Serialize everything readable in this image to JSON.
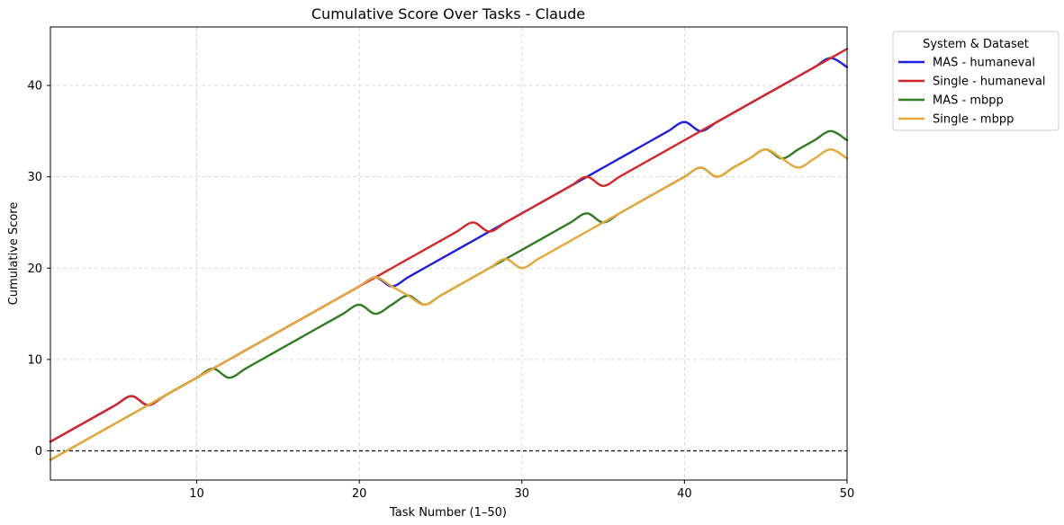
{
  "chart_data": {
    "type": "line",
    "title": "Cumulative Score Over Tasks - Claude",
    "xlabel": "Task Number (1–50)",
    "ylabel": "Cumulative Score",
    "xlim": [
      1,
      50
    ],
    "ylim": [
      -3.2,
      46.4
    ],
    "xticks": [
      10,
      20,
      30,
      40,
      50
    ],
    "yticks": [
      0,
      10,
      20,
      30,
      40
    ],
    "grid": true,
    "reference_line": 0,
    "legend": {
      "title": "System & Dataset",
      "placement": "outside-top-right"
    },
    "x": [
      1,
      2,
      3,
      4,
      5,
      6,
      7,
      8,
      9,
      10,
      11,
      12,
      13,
      14,
      15,
      16,
      17,
      18,
      19,
      20,
      21,
      22,
      23,
      24,
      25,
      26,
      27,
      28,
      29,
      30,
      31,
      32,
      33,
      34,
      35,
      36,
      37,
      38,
      39,
      40,
      41,
      42,
      43,
      44,
      45,
      46,
      47,
      48,
      49,
      50
    ],
    "series": [
      {
        "name": "MAS - humaneval",
        "color": "#1f1fe0",
        "values": [
          1,
          2,
          3,
          4,
          5,
          6,
          5,
          6,
          7,
          8,
          9,
          10,
          11,
          12,
          13,
          14,
          15,
          16,
          17,
          18,
          19,
          18,
          19,
          20,
          21,
          22,
          23,
          24,
          25,
          26,
          27,
          28,
          29,
          30,
          31,
          32,
          33,
          34,
          35,
          36,
          35,
          36,
          37,
          38,
          39,
          40,
          41,
          42,
          43,
          42
        ]
      },
      {
        "name": "Single - humaneval",
        "color": "#d62728",
        "values": [
          1,
          2,
          3,
          4,
          5,
          6,
          5,
          6,
          7,
          8,
          9,
          10,
          11,
          12,
          13,
          14,
          15,
          16,
          17,
          18,
          19,
          20,
          21,
          22,
          23,
          24,
          25,
          24,
          25,
          26,
          27,
          28,
          29,
          30,
          29,
          30,
          31,
          32,
          33,
          34,
          35,
          36,
          37,
          38,
          39,
          40,
          41,
          42,
          43,
          44
        ]
      },
      {
        "name": "MAS - mbpp",
        "color": "#2e7d1f",
        "values": [
          -1,
          0,
          1,
          2,
          3,
          4,
          5,
          6,
          7,
          8,
          9,
          8,
          9,
          10,
          11,
          12,
          13,
          14,
          15,
          16,
          15,
          16,
          17,
          16,
          17,
          18,
          19,
          20,
          21,
          22,
          23,
          24,
          25,
          26,
          25,
          26,
          27,
          28,
          29,
          30,
          31,
          30,
          31,
          32,
          33,
          32,
          33,
          34,
          35,
          34
        ]
      },
      {
        "name": "Single - mbpp",
        "color": "#e8a838",
        "values": [
          -1,
          0,
          1,
          2,
          3,
          4,
          5,
          6,
          7,
          8,
          9,
          10,
          11,
          12,
          13,
          14,
          15,
          16,
          17,
          18,
          19,
          18,
          17,
          16,
          17,
          18,
          19,
          20,
          21,
          20,
          21,
          22,
          23,
          24,
          25,
          26,
          27,
          28,
          29,
          30,
          31,
          30,
          31,
          32,
          33,
          32,
          31,
          32,
          33,
          32
        ]
      }
    ]
  }
}
